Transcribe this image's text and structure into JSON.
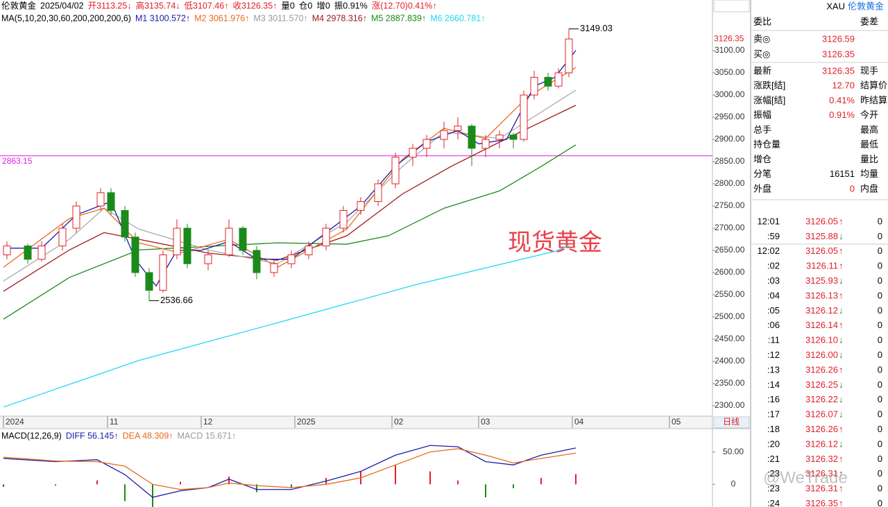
{
  "header": {
    "items": [
      {
        "text": "伦敦黄金",
        "color": "#000"
      },
      {
        "text": "2025/04/02",
        "color": "#000"
      },
      {
        "text": "开3113.25↓",
        "color": "#e0202a"
      },
      {
        "text": "高3135.74↓",
        "color": "#e0202a"
      },
      {
        "text": "低3107.46↑",
        "color": "#e0202a"
      },
      {
        "text": "收3126.35↑",
        "color": "#e0202a"
      },
      {
        "text": "量0",
        "color": "#000"
      },
      {
        "text": "仓0",
        "color": "#000"
      },
      {
        "text": "增0",
        "color": "#000"
      },
      {
        "text": "振0.91%",
        "color": "#000"
      },
      {
        "text": "涨(12.70)0.41%↑",
        "color": "#e0202a"
      }
    ]
  },
  "ma_legend": {
    "items": [
      {
        "text": "MA(5,10,20,30,60,200,200,200,6)",
        "color": "#000"
      },
      {
        "text": "M1 3100.572↑",
        "color": "#1c1ca8"
      },
      {
        "text": "M2 3061.976↑",
        "color": "#e86a1a"
      },
      {
        "text": "M3 3011.570↑",
        "color": "#999999"
      },
      {
        "text": "M4 2978.316↑",
        "color": "#a01818"
      },
      {
        "text": "M5 2887.839↑",
        "color": "#1a8a1a"
      },
      {
        "text": "M6 2660.781↑",
        "color": "#20d8f0"
      }
    ]
  },
  "macd_legend": {
    "items": [
      {
        "text": "MACD(12,26,9)",
        "color": "#000"
      },
      {
        "text": "DIFF 56.145↑",
        "color": "#1c1ca8"
      },
      {
        "text": "DEA 48.309↑",
        "color": "#e86a1a"
      },
      {
        "text": "MACD 15.671↑",
        "color": "#999999"
      }
    ]
  },
  "chart_data": [
    {
      "type": "candlestick",
      "xlim": [
        0,
        205.4
      ],
      "ylim": [
        2276.6,
        3214.1
      ],
      "yticks": [
        {
          "value": 3100,
          "label": "3100.00"
        },
        {
          "value": 3050,
          "label": "3050.00"
        },
        {
          "value": 3000,
          "label": "3000.00"
        },
        {
          "value": 2950,
          "label": "2950.00"
        },
        {
          "value": 2900,
          "label": "2900.00"
        },
        {
          "value": 2850,
          "label": "2850.00"
        },
        {
          "value": 2800,
          "label": "2800.00"
        },
        {
          "value": 2750,
          "label": "2750.00"
        },
        {
          "value": 2700,
          "label": "2700.00"
        },
        {
          "value": 2650,
          "label": "2650.00"
        },
        {
          "value": 2600,
          "label": "2600.00"
        },
        {
          "value": 2550,
          "label": "2550.00"
        },
        {
          "value": 2500,
          "label": "2500.00"
        },
        {
          "value": 2450,
          "label": "2450.00"
        },
        {
          "value": 2400,
          "label": "2400.00"
        },
        {
          "value": 2350,
          "label": "2350.00"
        },
        {
          "value": 2300,
          "label": "2300.00"
        }
      ],
      "xticks": [
        {
          "value": 1,
          "label": "2024"
        },
        {
          "value": 31,
          "label": "11"
        },
        {
          "value": 58,
          "label": "12"
        },
        {
          "value": 85,
          "label": "2025"
        },
        {
          "value": 113,
          "label": "02"
        },
        {
          "value": 138,
          "label": "03"
        },
        {
          "value": 165,
          "label": "04"
        },
        {
          "value": 193,
          "label": "05"
        }
      ],
      "period": "日线",
      "up_color": "#e0202a",
      "down_color": "#1a8a1a",
      "x": [
        2,
        8,
        12,
        18,
        22,
        29,
        32,
        36,
        39,
        43,
        47,
        51,
        54,
        60,
        66,
        70,
        74,
        79,
        84,
        89,
        94,
        99,
        104,
        109,
        114,
        119,
        123,
        128,
        132,
        136,
        140,
        144,
        148,
        151,
        154,
        158,
        161,
        164
      ],
      "open": [
        2640,
        2660,
        2630,
        2660,
        2700,
        2750,
        2780,
        2740,
        2680,
        2600,
        2560,
        2640,
        2700,
        2620,
        2640,
        2700,
        2650,
        2600,
        2620,
        2640,
        2660,
        2700,
        2740,
        2760,
        2800,
        2860,
        2880,
        2900,
        2920,
        2930,
        2880,
        2900,
        2910,
        2900,
        3000,
        3040,
        3020,
        3050
      ],
      "high": [
        2670,
        2665,
        2670,
        2710,
        2760,
        2790,
        2790,
        2750,
        2690,
        2610,
        2650,
        2720,
        2710,
        2650,
        2720,
        2705,
        2660,
        2630,
        2650,
        2670,
        2710,
        2750,
        2770,
        2810,
        2870,
        2890,
        2910,
        2940,
        2950,
        2935,
        2910,
        2920,
        2915,
        3010,
        3055,
        3050,
        3060,
        3149.03
      ],
      "low": [
        2630,
        2620,
        2625,
        2650,
        2690,
        2740,
        2730,
        2670,
        2590,
        2536.66,
        2555,
        2630,
        2610,
        2605,
        2635,
        2640,
        2585,
        2590,
        2610,
        2630,
        2650,
        2690,
        2730,
        2750,
        2790,
        2840,
        2860,
        2880,
        2900,
        2840,
        2860,
        2880,
        2880,
        2895,
        2990,
        3010,
        3015,
        3040
      ],
      "close": [
        2660,
        2630,
        2660,
        2700,
        2750,
        2780,
        2740,
        2680,
        2600,
        2560,
        2640,
        2700,
        2620,
        2640,
        2700,
        2650,
        2600,
        2620,
        2640,
        2660,
        2700,
        2740,
        2760,
        2800,
        2860,
        2880,
        2900,
        2920,
        2930,
        2880,
        2900,
        2910,
        2900,
        3000,
        3040,
        3020,
        3050,
        3126.35
      ],
      "series": [
        {
          "color": "#20d8f0",
          "x": [
            1,
            40,
            80,
            120,
            160,
            164
          ],
          "values": [
            2297,
            2402,
            2487,
            2573,
            2648,
            2660.8
          ]
        },
        {
          "color": "#1a8a1a",
          "x": [
            1,
            20,
            40,
            60,
            80,
            100,
            112,
            128,
            144,
            156,
            166
          ],
          "values": [
            2495,
            2589,
            2651,
            2659,
            2667,
            2664,
            2683,
            2745,
            2784,
            2839,
            2887.8
          ]
        },
        {
          "color": "#a01818",
          "x": [
            1,
            20,
            30,
            40,
            60,
            80,
            100,
            116,
            130,
            144,
            166
          ],
          "values": [
            2558,
            2651,
            2690,
            2675,
            2644,
            2628,
            2683,
            2777,
            2839,
            2894,
            2977
          ]
        },
        {
          "color": "#aaaaaa",
          "x": [
            1,
            20,
            30,
            40,
            60,
            80,
            100,
            116,
            128,
            144,
            166
          ],
          "values": [
            2581,
            2675,
            2745,
            2698,
            2651,
            2620,
            2714,
            2839,
            2917,
            2902,
            3011
          ]
        },
        {
          "color": "#e86a1a",
          "x": [
            1,
            20,
            30,
            40,
            52,
            66,
            80,
            100,
            116,
            128,
            140,
            152,
            166
          ],
          "values": [
            2612,
            2722,
            2745,
            2667,
            2644,
            2675,
            2612,
            2698,
            2855,
            2925,
            2902,
            2995,
            3062
          ]
        },
        {
          "color": "#1c1ca8",
          "x": [
            2,
            12,
            22,
            32,
            39,
            45,
            51,
            58,
            66,
            74,
            84,
            94,
            104,
            114,
            123,
            132,
            138,
            146,
            154,
            160,
            166
          ],
          "values": [
            2655,
            2655,
            2730,
            2760,
            2630,
            2570,
            2650,
            2650,
            2670,
            2630,
            2630,
            2690,
            2750,
            2840,
            2895,
            2920,
            2890,
            2900,
            3020,
            3040,
            3100.6
          ]
        }
      ],
      "annotations": [
        {
          "value": 3149.03,
          "x": 164
        },
        {
          "value": 2536.66,
          "x": 43
        }
      ],
      "hline": {
        "value": 2863.15,
        "color": "#e020e0"
      },
      "last_price": {
        "value": 3126.35,
        "color": "#e0202a"
      },
      "watermark": "现货黄金"
    },
    {
      "type": "macd",
      "ylim": [
        -35,
        86
      ],
      "yticks": [
        {
          "value": 50,
          "label": "50.00"
        },
        0
      ],
      "x": [
        1,
        16,
        28,
        36,
        44,
        52,
        60,
        66,
        74,
        84,
        94,
        104,
        114,
        124,
        132,
        140,
        148,
        156,
        166
      ],
      "diff": [
        40,
        35,
        38,
        15,
        -20,
        -10,
        -5,
        8,
        -8,
        -8,
        5,
        20,
        45,
        60,
        58,
        35,
        30,
        45,
        56.1
      ],
      "dea": [
        42,
        36,
        35,
        28,
        0,
        -8,
        -5,
        2,
        -2,
        -5,
        0,
        10,
        30,
        50,
        55,
        45,
        33,
        40,
        48.3
      ],
      "hist": [
        -4,
        -2,
        6,
        -26,
        -40,
        4,
        0,
        12,
        -12,
        -6,
        10,
        20,
        30,
        20,
        6,
        -20,
        -6,
        10,
        15.67
      ],
      "diff_color": "#1c1ca8",
      "dea_color": "#e86a1a",
      "pos_color": "#e0202a",
      "neg_color": "#1a8a1a"
    }
  ],
  "sidebar": {
    "title": "XAU",
    "name": "伦敦黄金",
    "top": {
      "label": "委比",
      "right": "委差"
    },
    "book": [
      {
        "label": "卖◎",
        "value": "3126.59"
      },
      {
        "label": "买◎",
        "value": "3126.35"
      }
    ],
    "rows": [
      {
        "label": "最新",
        "value": "3126.35",
        "right": "现手"
      },
      {
        "label": "涨跌[结]",
        "value": "12.70",
        "right": "结算价"
      },
      {
        "label": "涨幅[结]",
        "value": "0.41%",
        "right": "昨结算"
      },
      {
        "label": "振幅",
        "value": "0.91%",
        "right": "今开"
      },
      {
        "label": "总手",
        "right": "最高"
      },
      {
        "label": "持仓量",
        "right": "最低"
      },
      {
        "label": "增仓",
        "right": "量比"
      },
      {
        "label": "分笔",
        "value": "16151",
        "right": "均量"
      },
      {
        "label": "外盘",
        "value": "0",
        "right": "内盘"
      }
    ],
    "ticks": [
      {
        "time": "12:01",
        "price": "3126.05",
        "dir": "↑",
        "vol": "0"
      },
      {
        "time": ":59",
        "price": "3125.88",
        "dir": "↓",
        "vol": "0"
      },
      {
        "time": "12:02",
        "price": "3126.05",
        "dir": "↑",
        "vol": "0"
      },
      {
        "time": ":02",
        "price": "3126.11",
        "dir": "↑",
        "vol": "0"
      },
      {
        "time": ":03",
        "price": "3125.93",
        "dir": "↓",
        "vol": "0"
      },
      {
        "time": ":04",
        "price": "3126.13",
        "dir": "↑",
        "vol": "0"
      },
      {
        "time": ":05",
        "price": "3126.12",
        "dir": "↓",
        "vol": "0"
      },
      {
        "time": ":06",
        "price": "3126.14",
        "dir": "↑",
        "vol": "0"
      },
      {
        "time": ":11",
        "price": "3126.10",
        "dir": "↓",
        "vol": "0"
      },
      {
        "time": ":12",
        "price": "3126.00",
        "dir": "↓",
        "vol": "0"
      },
      {
        "time": ":13",
        "price": "3126.26",
        "dir": "↑",
        "vol": "0"
      },
      {
        "time": ":14",
        "price": "3126.25",
        "dir": "↓",
        "vol": "0"
      },
      {
        "time": ":16",
        "price": "3126.22",
        "dir": "↓",
        "vol": "0"
      },
      {
        "time": ":17",
        "price": "3126.07",
        "dir": "↓",
        "vol": "0"
      },
      {
        "time": ":18",
        "price": "3126.26",
        "dir": "↑",
        "vol": "0"
      },
      {
        "time": ":20",
        "price": "3126.12",
        "dir": "↓",
        "vol": "0"
      },
      {
        "time": ":21",
        "price": "3126.32",
        "dir": "↑",
        "vol": "0"
      },
      {
        "time": ":23",
        "price": "3126.31",
        "dir": "↑",
        "vol": "0"
      },
      {
        "time": ":23",
        "price": "3126.31",
        "dir": "↑",
        "vol": "0"
      },
      {
        "time": ":24",
        "price": "3126.35",
        "dir": "↑",
        "vol": "0"
      }
    ],
    "watermark": "@WeTrade"
  }
}
